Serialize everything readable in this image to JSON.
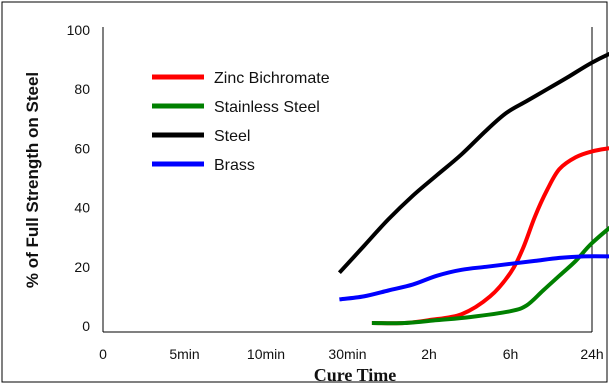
{
  "chart_data": {
    "type": "line",
    "title": "",
    "xlabel": "Cure Time",
    "ylabel": "% of Full Strength on Steel",
    "x_ticks": [
      "0",
      "5min",
      "10min",
      "30min",
      "2h",
      "6h",
      "24h"
    ],
    "y_ticks": [
      "0",
      "20",
      "40",
      "60",
      "80",
      "100"
    ],
    "ylim": [
      0,
      100
    ],
    "grid": false,
    "legend_position": "top-left",
    "series": [
      {
        "name": "Zinc Bichromate",
        "color": "#ff0000",
        "points": [
          [
            3.3,
            1
          ],
          [
            3.7,
            1
          ],
          [
            4.0,
            2
          ],
          [
            4.4,
            4
          ],
          [
            4.75,
            10
          ],
          [
            5.0,
            18
          ],
          [
            5.15,
            26
          ],
          [
            5.3,
            37
          ],
          [
            5.45,
            46
          ],
          [
            5.6,
            53
          ],
          [
            5.8,
            57
          ],
          [
            6.0,
            59
          ],
          [
            6.2,
            60
          ],
          [
            6.5,
            61
          ],
          [
            6.9,
            61
          ]
        ]
      },
      {
        "name": "Stainless Steel",
        "color": "#008000",
        "points": [
          [
            3.3,
            1
          ],
          [
            3.7,
            1
          ],
          [
            4.1,
            2
          ],
          [
            4.5,
            3
          ],
          [
            5.0,
            5
          ],
          [
            5.2,
            7
          ],
          [
            5.4,
            12
          ],
          [
            5.6,
            17
          ],
          [
            5.8,
            22
          ],
          [
            6.0,
            28
          ],
          [
            6.3,
            35
          ],
          [
            6.6,
            41
          ],
          [
            6.9,
            43
          ]
        ]
      },
      {
        "name": "Steel",
        "color": "#000000",
        "points": [
          [
            2.9,
            18
          ],
          [
            3.2,
            27
          ],
          [
            3.5,
            36
          ],
          [
            3.8,
            44
          ],
          [
            4.1,
            51
          ],
          [
            4.4,
            58
          ],
          [
            4.7,
            66
          ],
          [
            4.95,
            72
          ],
          [
            5.2,
            76
          ],
          [
            5.45,
            80
          ],
          [
            5.7,
            84
          ],
          [
            6.0,
            89
          ],
          [
            6.3,
            93
          ],
          [
            6.6,
            96
          ],
          [
            6.9,
            99
          ]
        ]
      },
      {
        "name": "Brass",
        "color": "#0000ff",
        "points": [
          [
            2.9,
            9
          ],
          [
            3.2,
            10
          ],
          [
            3.5,
            12
          ],
          [
            3.8,
            14
          ],
          [
            4.1,
            17
          ],
          [
            4.4,
            19
          ],
          [
            4.7,
            20
          ],
          [
            5.0,
            21
          ],
          [
            5.3,
            22
          ],
          [
            5.6,
            23
          ],
          [
            5.9,
            23.5
          ],
          [
            6.2,
            23.5
          ],
          [
            6.5,
            23.3
          ],
          [
            6.9,
            23.3
          ]
        ]
      }
    ]
  }
}
